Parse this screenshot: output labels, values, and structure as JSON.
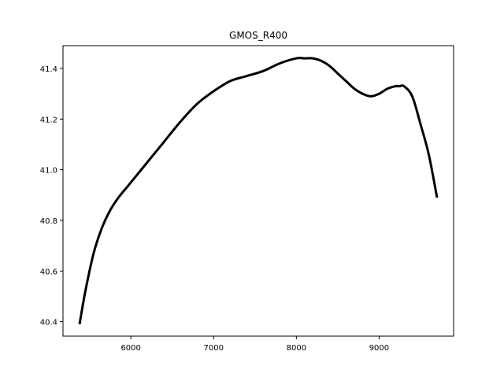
{
  "chart_data": {
    "type": "line",
    "title": "GMOS_R400",
    "xlabel": "",
    "ylabel": "",
    "xlim": [
      5180,
      9900
    ],
    "ylim": [
      40.343,
      41.49
    ],
    "x_ticks": [
      6000,
      7000,
      8000,
      9000
    ],
    "y_ticks": [
      40.4,
      40.6,
      40.8,
      41.0,
      41.2,
      41.4
    ],
    "x_tick_labels": [
      "6000",
      "7000",
      "8000",
      "9000"
    ],
    "y_tick_labels": [
      "40.4",
      "40.6",
      "40.8",
      "41.0",
      "41.2",
      "41.4"
    ],
    "grid": false,
    "line_color": "#000000",
    "series": [
      {
        "x": [
          5380,
          5450,
          5550,
          5650,
          5750,
          5850,
          5950,
          6050,
          6200,
          6400,
          6600,
          6800,
          7000,
          7200,
          7400,
          7600,
          7800,
          8000,
          8100,
          8200,
          8300,
          8400,
          8500,
          8600,
          8700,
          8800,
          8900,
          9000,
          9100,
          9200,
          9250,
          9300,
          9400,
          9500,
          9600,
          9700
        ],
        "y": [
          40.39,
          40.52,
          40.67,
          40.77,
          40.84,
          40.89,
          40.93,
          40.97,
          41.03,
          41.11,
          41.19,
          41.26,
          41.31,
          41.35,
          41.37,
          41.39,
          41.42,
          41.44,
          41.44,
          41.44,
          41.43,
          41.41,
          41.38,
          41.35,
          41.32,
          41.3,
          41.29,
          41.3,
          41.32,
          41.33,
          41.33,
          41.33,
          41.29,
          41.18,
          41.06,
          40.89
        ]
      }
    ]
  }
}
